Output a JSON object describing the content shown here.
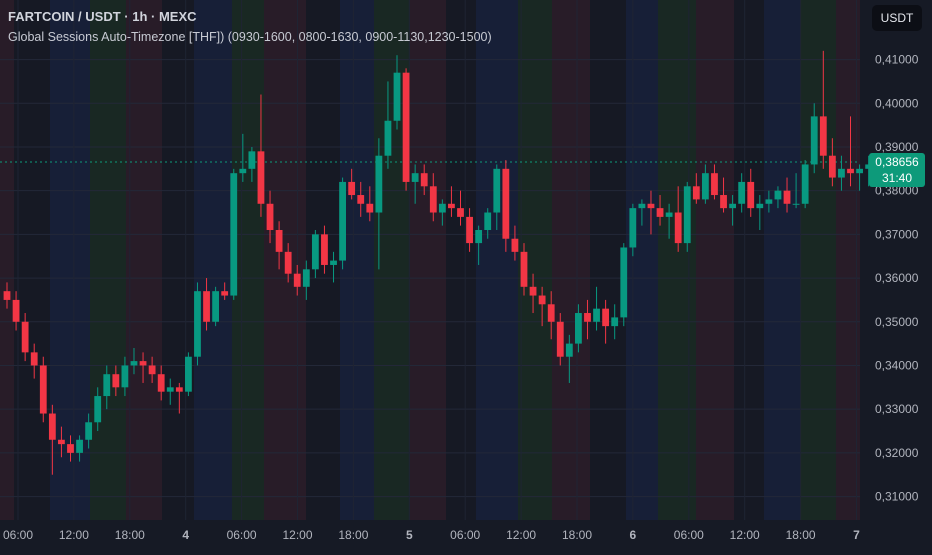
{
  "header": {
    "title": "FARTCOIN / USDT · 1h · MEXC",
    "indicator": "Global Sessions Auto-Timezone [THF]) (0930-1600, 0800-1630, 0900-1130,1230-1500)"
  },
  "currency_button": "USDT",
  "last_price": {
    "value": "0,38656",
    "countdown": "31:40"
  },
  "colors": {
    "up": "#089981",
    "down": "#f23645",
    "background": "#161a25",
    "last_price": "#0d9a7a"
  },
  "chart_data": {
    "type": "candlestick",
    "title": "FARTCOIN / USDT · 1h · MEXC",
    "ylim": [
      0.305,
      0.416
    ],
    "y_ticks": [
      "0,41000",
      "0,40000",
      "0,39000",
      "0,38000",
      "0,37000",
      "0,36000",
      "0,35000",
      "0,34000",
      "0,33000",
      "0,32000",
      "0,31000"
    ],
    "x_ticks": [
      "06:00",
      "12:00",
      "18:00",
      "4",
      "06:00",
      "12:00",
      "18:00",
      "5",
      "06:00",
      "12:00",
      "18:00",
      "6",
      "06:00",
      "12:00",
      "18:00",
      "7"
    ],
    "last_price": 0.38656,
    "grid": true,
    "candles": [
      [
        0.357,
        0.359,
        0.353,
        0.355
      ],
      [
        0.355,
        0.357,
        0.348,
        0.35
      ],
      [
        0.35,
        0.352,
        0.341,
        0.343
      ],
      [
        0.343,
        0.345,
        0.337,
        0.34
      ],
      [
        0.34,
        0.342,
        0.327,
        0.329
      ],
      [
        0.329,
        0.331,
        0.315,
        0.323
      ],
      [
        0.323,
        0.326,
        0.319,
        0.322
      ],
      [
        0.322,
        0.324,
        0.318,
        0.32
      ],
      [
        0.32,
        0.324,
        0.318,
        0.323
      ],
      [
        0.323,
        0.329,
        0.321,
        0.327
      ],
      [
        0.327,
        0.335,
        0.325,
        0.333
      ],
      [
        0.333,
        0.34,
        0.33,
        0.338
      ],
      [
        0.338,
        0.34,
        0.333,
        0.335
      ],
      [
        0.335,
        0.342,
        0.333,
        0.34
      ],
      [
        0.34,
        0.344,
        0.338,
        0.341
      ],
      [
        0.341,
        0.343,
        0.336,
        0.34
      ],
      [
        0.34,
        0.342,
        0.336,
        0.338
      ],
      [
        0.338,
        0.34,
        0.332,
        0.334
      ],
      [
        0.334,
        0.337,
        0.331,
        0.335
      ],
      [
        0.335,
        0.336,
        0.329,
        0.334
      ],
      [
        0.334,
        0.343,
        0.333,
        0.342
      ],
      [
        0.342,
        0.359,
        0.34,
        0.357
      ],
      [
        0.357,
        0.36,
        0.348,
        0.35
      ],
      [
        0.35,
        0.358,
        0.349,
        0.357
      ],
      [
        0.357,
        0.359,
        0.355,
        0.356
      ],
      [
        0.356,
        0.385,
        0.355,
        0.384
      ],
      [
        0.384,
        0.393,
        0.382,
        0.385
      ],
      [
        0.385,
        0.39,
        0.382,
        0.389
      ],
      [
        0.389,
        0.402,
        0.374,
        0.377
      ],
      [
        0.377,
        0.38,
        0.368,
        0.371
      ],
      [
        0.371,
        0.373,
        0.362,
        0.366
      ],
      [
        0.366,
        0.368,
        0.359,
        0.361
      ],
      [
        0.361,
        0.363,
        0.356,
        0.358
      ],
      [
        0.358,
        0.364,
        0.355,
        0.362
      ],
      [
        0.362,
        0.371,
        0.36,
        0.37
      ],
      [
        0.37,
        0.372,
        0.361,
        0.363
      ],
      [
        0.363,
        0.366,
        0.359,
        0.364
      ],
      [
        0.364,
        0.383,
        0.362,
        0.382
      ],
      [
        0.382,
        0.385,
        0.378,
        0.379
      ],
      [
        0.379,
        0.382,
        0.374,
        0.377
      ],
      [
        0.377,
        0.381,
        0.373,
        0.375
      ],
      [
        0.375,
        0.392,
        0.362,
        0.388
      ],
      [
        0.388,
        0.405,
        0.385,
        0.396
      ],
      [
        0.396,
        0.411,
        0.394,
        0.407
      ],
      [
        0.407,
        0.408,
        0.38,
        0.382
      ],
      [
        0.382,
        0.386,
        0.377,
        0.384
      ],
      [
        0.384,
        0.386,
        0.379,
        0.381
      ],
      [
        0.381,
        0.384,
        0.373,
        0.375
      ],
      [
        0.375,
        0.378,
        0.372,
        0.377
      ],
      [
        0.377,
        0.381,
        0.374,
        0.376
      ],
      [
        0.376,
        0.38,
        0.372,
        0.374
      ],
      [
        0.374,
        0.376,
        0.366,
        0.368
      ],
      [
        0.368,
        0.372,
        0.363,
        0.371
      ],
      [
        0.371,
        0.376,
        0.369,
        0.375
      ],
      [
        0.375,
        0.386,
        0.371,
        0.385
      ],
      [
        0.385,
        0.387,
        0.366,
        0.369
      ],
      [
        0.369,
        0.372,
        0.364,
        0.366
      ],
      [
        0.366,
        0.368,
        0.356,
        0.358
      ],
      [
        0.358,
        0.361,
        0.352,
        0.356
      ],
      [
        0.356,
        0.358,
        0.349,
        0.354
      ],
      [
        0.354,
        0.357,
        0.346,
        0.35
      ],
      [
        0.35,
        0.352,
        0.34,
        0.342
      ],
      [
        0.342,
        0.347,
        0.336,
        0.345
      ],
      [
        0.345,
        0.354,
        0.343,
        0.352
      ],
      [
        0.352,
        0.355,
        0.346,
        0.35
      ],
      [
        0.35,
        0.358,
        0.348,
        0.353
      ],
      [
        0.353,
        0.355,
        0.345,
        0.349
      ],
      [
        0.349,
        0.354,
        0.346,
        0.351
      ],
      [
        0.351,
        0.368,
        0.349,
        0.367
      ],
      [
        0.367,
        0.377,
        0.365,
        0.376
      ],
      [
        0.376,
        0.378,
        0.372,
        0.377
      ],
      [
        0.377,
        0.38,
        0.37,
        0.376
      ],
      [
        0.376,
        0.379,
        0.372,
        0.374
      ],
      [
        0.374,
        0.377,
        0.369,
        0.375
      ],
      [
        0.375,
        0.381,
        0.366,
        0.368
      ],
      [
        0.368,
        0.382,
        0.366,
        0.381
      ],
      [
        0.381,
        0.384,
        0.377,
        0.378
      ],
      [
        0.378,
        0.386,
        0.377,
        0.384
      ],
      [
        0.384,
        0.386,
        0.378,
        0.379
      ],
      [
        0.379,
        0.383,
        0.375,
        0.376
      ],
      [
        0.376,
        0.379,
        0.372,
        0.377
      ],
      [
        0.377,
        0.384,
        0.375,
        0.382
      ],
      [
        0.382,
        0.385,
        0.374,
        0.376
      ],
      [
        0.376,
        0.379,
        0.371,
        0.377
      ],
      [
        0.377,
        0.38,
        0.375,
        0.378
      ],
      [
        0.378,
        0.381,
        0.376,
        0.38
      ],
      [
        0.38,
        0.383,
        0.375,
        0.377
      ],
      [
        0.377,
        0.384,
        0.376,
        0.377
      ],
      [
        0.377,
        0.387,
        0.376,
        0.386
      ],
      [
        0.386,
        0.4,
        0.384,
        0.397
      ],
      [
        0.397,
        0.412,
        0.385,
        0.388
      ],
      [
        0.388,
        0.392,
        0.381,
        0.383
      ],
      [
        0.383,
        0.388,
        0.38,
        0.385
      ],
      [
        0.385,
        0.397,
        0.381,
        0.384
      ],
      [
        0.384,
        0.386,
        0.38,
        0.385
      ],
      [
        0.385,
        0.388,
        0.381,
        0.386
      ]
    ]
  }
}
